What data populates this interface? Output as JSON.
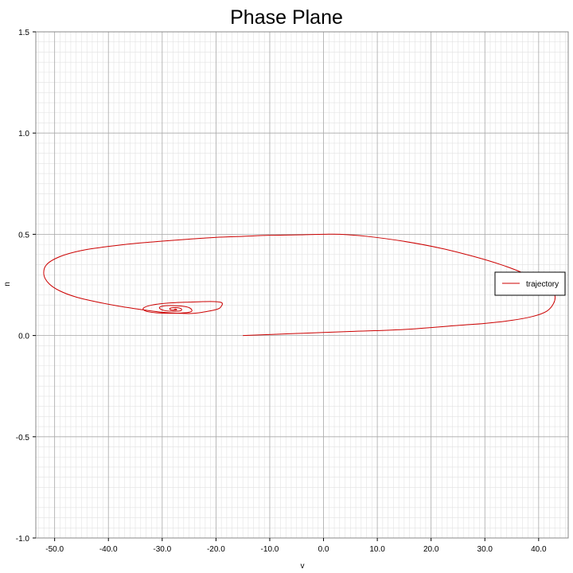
{
  "chart_data": {
    "type": "line",
    "title": "Phase Plane",
    "xlabel": "v",
    "ylabel": "n",
    "xlim": [
      -53.5,
      45.5
    ],
    "ylim": [
      -1.0,
      1.5
    ],
    "x_ticks": [
      -50.0,
      -40.0,
      -30.0,
      -20.0,
      -10.0,
      0.0,
      10.0,
      20.0,
      30.0,
      40.0
    ],
    "x_tick_labels": [
      "-50.0",
      "-40.0",
      "-30.0",
      "-20.0",
      "-10.0",
      "0.0",
      "10.0",
      "20.0",
      "30.0",
      "40.0"
    ],
    "y_ticks": [
      -1.0,
      -0.5,
      0.0,
      0.5,
      1.0,
      1.5
    ],
    "y_tick_labels": [
      "-1.0",
      "-0.5",
      "0.0",
      "0.5",
      "1.0",
      "1.5"
    ],
    "grid": true,
    "minor_grid": true,
    "legend_position": "right",
    "colors": {
      "trajectory": "#cc0000",
      "major_grid": "#aaaaaa",
      "minor_grid": "#e2e2e2"
    },
    "series": [
      {
        "name": "trajectory",
        "color": "#cc0000",
        "x": [
          -15,
          -5,
          5,
          15,
          25,
          30,
          35,
          39,
          41.5,
          42.8,
          43,
          42,
          40,
          37,
          33,
          28,
          22,
          15,
          8,
          3,
          0,
          -5,
          -10,
          -15,
          -20,
          -25,
          -30,
          -35,
          -40,
          -45,
          -49,
          -51.5,
          -52,
          -51,
          -49,
          -46,
          -42,
          -38,
          -33,
          -30,
          -27,
          -24,
          -20,
          -19,
          -19,
          -21,
          -25,
          -29,
          -32,
          -33.5,
          -33,
          -31,
          -28,
          -25,
          -24.5,
          -25.5,
          -28,
          -30,
          -30.5,
          -29.5,
          -27.5,
          -26.5,
          -26.5,
          -27.5,
          -28.5,
          -28.5,
          -27.8,
          -27.3,
          -27.5,
          -27.8
        ],
        "y": [
          0,
          0.01,
          0.02,
          0.03,
          0.05,
          0.06,
          0.075,
          0.095,
          0.12,
          0.16,
          0.2,
          0.24,
          0.27,
          0.31,
          0.35,
          0.39,
          0.43,
          0.465,
          0.49,
          0.5,
          0.5,
          0.497,
          0.495,
          0.49,
          0.485,
          0.476,
          0.466,
          0.455,
          0.44,
          0.42,
          0.39,
          0.35,
          0.3,
          0.255,
          0.22,
          0.19,
          0.165,
          0.145,
          0.125,
          0.115,
          0.11,
          0.11,
          0.128,
          0.145,
          0.163,
          0.168,
          0.165,
          0.16,
          0.15,
          0.135,
          0.12,
          0.112,
          0.11,
          0.115,
          0.127,
          0.142,
          0.148,
          0.145,
          0.135,
          0.123,
          0.12,
          0.123,
          0.133,
          0.138,
          0.135,
          0.128,
          0.125,
          0.127,
          0.131,
          0.13
        ]
      }
    ]
  }
}
